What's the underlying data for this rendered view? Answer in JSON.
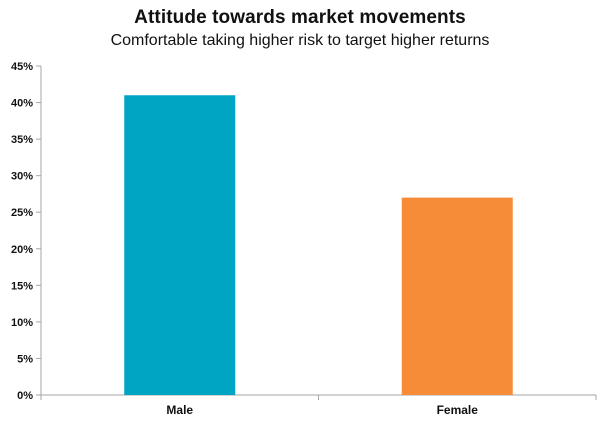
{
  "chart_data": {
    "type": "bar",
    "title": "Attitude towards market movements",
    "subtitle": "Comfortable taking higher risk to target higher returns",
    "xlabel": "",
    "ylabel": "",
    "categories": [
      "Male",
      "Female"
    ],
    "values": [
      41,
      27
    ],
    "colors": [
      "#00A5C4",
      "#F68B38"
    ],
    "ylim": [
      0,
      45
    ],
    "yticks": [
      0,
      5,
      10,
      15,
      20,
      25,
      30,
      35,
      40,
      45
    ],
    "tick_suffix": "%",
    "grid": false,
    "legend": "none"
  }
}
